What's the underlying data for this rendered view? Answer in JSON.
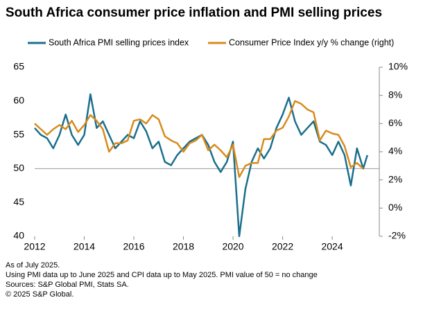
{
  "chart_data": {
    "type": "line",
    "title": "South Africa consumer price inflation and PMI selling prices",
    "x": [
      2012,
      2012.25,
      2012.5,
      2012.75,
      2013,
      2013.25,
      2013.5,
      2013.75,
      2014,
      2014.25,
      2014.5,
      2014.75,
      2015,
      2015.25,
      2015.5,
      2015.75,
      2016,
      2016.25,
      2016.5,
      2016.75,
      2017,
      2017.25,
      2017.5,
      2017.75,
      2018,
      2018.25,
      2018.5,
      2018.75,
      2019,
      2019.25,
      2019.5,
      2019.75,
      2020,
      2020.25,
      2020.5,
      2020.75,
      2021,
      2021.25,
      2021.5,
      2021.75,
      2022,
      2022.25,
      2022.5,
      2022.75,
      2023,
      2023.25,
      2023.5,
      2023.75,
      2024,
      2024.25,
      2024.5,
      2024.75,
      2025,
      2025.25,
      2025.42
    ],
    "series": [
      {
        "name": "South Africa PMI selling prices index",
        "color": "#1a6f8c",
        "values": [
          56,
          55,
          54.5,
          53,
          55,
          58,
          55,
          53.5,
          55,
          61,
          56,
          57,
          55,
          53,
          54,
          55,
          54.5,
          57,
          55.5,
          53,
          54,
          51,
          50.5,
          52,
          53,
          54,
          54.5,
          55,
          53.5,
          51,
          49.5,
          51,
          54,
          40,
          47,
          51,
          53,
          51.5,
          53,
          56,
          58,
          60.5,
          57,
          55,
          56,
          57,
          54,
          53.5,
          52,
          54,
          52,
          47.5,
          53,
          50,
          52
        ]
      },
      {
        "name": "Consumer Price Index y/y % change (right)",
        "color": "#d88a1c",
        "axis": "y2",
        "values": [
          6.0,
          5.6,
          5.2,
          5.6,
          5.9,
          5.6,
          6.2,
          5.4,
          5.9,
          6.6,
          6.2,
          5.6,
          4.0,
          4.6,
          4.6,
          4.8,
          6.2,
          6.3,
          6.0,
          6.6,
          6.3,
          5.1,
          4.8,
          4.6,
          4.0,
          4.6,
          4.8,
          5.2,
          4.1,
          4.5,
          4.1,
          3.6,
          4.5,
          2.2,
          3.0,
          3.2,
          3.2,
          4.9,
          4.9,
          5.5,
          5.7,
          6.5,
          7.6,
          7.4,
          7.0,
          6.8,
          4.8,
          5.5,
          5.3,
          5.2,
          4.4,
          2.9,
          3.2,
          2.8,
          null
        ]
      }
    ],
    "xlim": [
      2012,
      2025.9
    ],
    "xticks": [
      2012,
      2014,
      2016,
      2018,
      2020,
      2022,
      2024
    ],
    "ylim": [
      40,
      65
    ],
    "yticks": [
      40,
      45,
      50,
      55,
      60,
      65
    ],
    "y2lim": [
      -2,
      10
    ],
    "y2ticks": [
      {
        "value": -2,
        "label": "-2%"
      },
      {
        "value": 0,
        "label": "0%"
      },
      {
        "value": 2,
        "label": "2%"
      },
      {
        "value": 4,
        "label": "4%"
      },
      {
        "value": 6,
        "label": "6%"
      },
      {
        "value": 8,
        "label": "8%"
      },
      {
        "value": 10,
        "label": "10%"
      }
    ],
    "reference_line": 50,
    "notes": [
      "As of July 2025.",
      "Using PMI data up to June 2025 and CPI data up to May 2025. PMI value of 50 = no change",
      "Sources: S&P Global PMI, Stats SA.",
      "© 2025 S&P Global."
    ]
  }
}
